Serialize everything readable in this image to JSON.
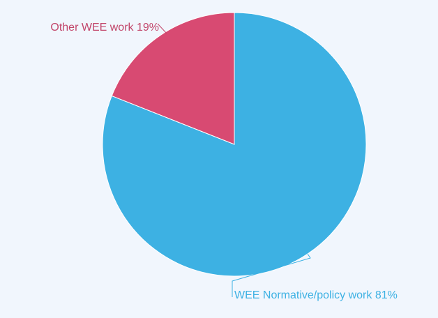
{
  "chart_data": {
    "type": "pie",
    "title": "",
    "slices": [
      {
        "label": "WEE Normative/policy work",
        "value": 81,
        "label_text": "WEE Normative/policy work 81%",
        "color": "#3db1e3",
        "label_color": "#3db1e3"
      },
      {
        "label": "Other WEE work",
        "value": 19,
        "label_text": "Other WEE work 19%",
        "color": "#d84a72",
        "label_color": "#c2466b"
      }
    ],
    "start_angle": "12 o'clock",
    "direction": "clockwise",
    "legend": "none"
  }
}
